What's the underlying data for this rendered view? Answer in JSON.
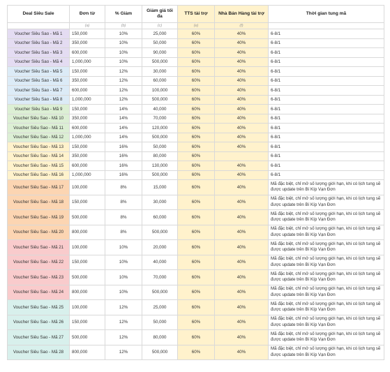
{
  "colors": {
    "lavender": "#e4dcf2",
    "light_blue": "#dcebf7",
    "light_green": "#dcefd4",
    "light_yellow": "#fff2cc",
    "orange": "#fcd5b2",
    "pink": "#f9cbcc",
    "mint": "#d8f0ec"
  },
  "headers": {
    "deal": "Deal Siêu Sale",
    "don_tu": "Đơn từ",
    "pct_giam": "% Giảm",
    "giam_toi_da": "Giảm giá tối đa",
    "tts": "TTS tài trợ",
    "nha_ban_hang": "Nhà Bán Hàng tài trợ",
    "thoi_gian": "Thời gian tung mã"
  },
  "subheaders": {
    "don_tu": "(a)",
    "pct_giam": "(b)",
    "giam_toi_da": "(c)",
    "tts": "(e)",
    "nha_ban_hang": "(f)"
  },
  "rows": [
    {
      "voucher": "Voucher Siêu Sao - Mã 1",
      "don_tu": "150,000",
      "pct": "10%",
      "max": "25,000",
      "tts": "60%",
      "nbh": "40%",
      "time": "6-8/1",
      "color": "#e4dcf2",
      "tall": false
    },
    {
      "voucher": "Voucher Siêu Sao - Mã 2",
      "don_tu": "350,000",
      "pct": "10%",
      "max": "50,000",
      "tts": "60%",
      "nbh": "40%",
      "time": "6-8/1",
      "color": "#e4dcf2",
      "tall": false
    },
    {
      "voucher": "Voucher Siêu Sao - Mã 3",
      "don_tu": "600,000",
      "pct": "10%",
      "max": "90,000",
      "tts": "60%",
      "nbh": "40%",
      "time": "6-8/1",
      "color": "#e4dcf2",
      "tall": false
    },
    {
      "voucher": "Voucher Siêu Sao - Mã 4",
      "don_tu": "1,000,000",
      "pct": "10%",
      "max": "500,000",
      "tts": "60%",
      "nbh": "40%",
      "time": "6-8/1",
      "color": "#e4dcf2",
      "tall": false
    },
    {
      "voucher": "Voucher Siêu Sao - Mã 5",
      "don_tu": "150,000",
      "pct": "12%",
      "max": "30,000",
      "tts": "60%",
      "nbh": "40%",
      "time": "6-8/1",
      "color": "#dcebf7",
      "tall": false
    },
    {
      "voucher": "Voucher Siêu Sao - Mã 6",
      "don_tu": "350,000",
      "pct": "12%",
      "max": "60,000",
      "tts": "60%",
      "nbh": "40%",
      "time": "6-8/1",
      "color": "#dcebf7",
      "tall": false
    },
    {
      "voucher": "Voucher Siêu Sao - Mã 7",
      "don_tu": "600,000",
      "pct": "12%",
      "max": "100,000",
      "tts": "60%",
      "nbh": "40%",
      "time": "6-8/1",
      "color": "#dcebf7",
      "tall": false
    },
    {
      "voucher": "Voucher Siêu Sao - Mã 8",
      "don_tu": "1,000,000",
      "pct": "12%",
      "max": "500,000",
      "tts": "60%",
      "nbh": "40%",
      "time": "6-8/1",
      "color": "#dcebf7",
      "tall": false
    },
    {
      "voucher": "Voucher Siêu Sao - Mã 9",
      "don_tu": "150,000",
      "pct": "14%",
      "max": "40,000",
      "tts": "60%",
      "nbh": "40%",
      "time": "6-8/1",
      "color": "#dcefd4",
      "tall": false
    },
    {
      "voucher": "Voucher Siêu Sao - Mã 10",
      "don_tu": "350,000",
      "pct": "14%",
      "max": "70,000",
      "tts": "60%",
      "nbh": "40%",
      "time": "6-8/1",
      "color": "#dcefd4",
      "tall": false
    },
    {
      "voucher": "Voucher Siêu Sao - Mã 11",
      "don_tu": "600,000",
      "pct": "14%",
      "max": "120,000",
      "tts": "60%",
      "nbh": "40%",
      "time": "6-8/1",
      "color": "#dcefd4",
      "tall": false
    },
    {
      "voucher": "Voucher Siêu Sao - Mã 12",
      "don_tu": "1,000,000",
      "pct": "14%",
      "max": "500,000",
      "tts": "60%",
      "nbh": "40%",
      "time": "6-8/1",
      "color": "#dcefd4",
      "tall": false
    },
    {
      "voucher": "Voucher Siêu Sao - Mã 13",
      "don_tu": "150,000",
      "pct": "16%",
      "max": "50,000",
      "tts": "60%",
      "nbh": "40%",
      "time": "6-8/1",
      "color": "#fff2cc",
      "tall": false
    },
    {
      "voucher": "Voucher Siêu Sao - Mã 14",
      "don_tu": "350,000",
      "pct": "16%",
      "max": "80,000",
      "tts": "60%",
      "nbh": "",
      "time": "6-8/1",
      "color": "#fff2cc",
      "tall": false
    },
    {
      "voucher": "Voucher Siêu Sao - Mã 15",
      "don_tu": "600,000",
      "pct": "16%",
      "max": "130,000",
      "tts": "60%",
      "nbh": "40%",
      "time": "6-8/1",
      "color": "#fff2cc",
      "tall": false
    },
    {
      "voucher": "Voucher Siêu Sao - Mã 16",
      "don_tu": "1,000,000",
      "pct": "16%",
      "max": "500,000",
      "tts": "60%",
      "nbh": "40%",
      "time": "6-8/1",
      "color": "#fff2cc",
      "tall": false
    },
    {
      "voucher": "Voucher Siêu Sao - Mã 17",
      "don_tu": "100,000",
      "pct": "8%",
      "max": "15,000",
      "tts": "60%",
      "nbh": "40%",
      "time": "Mã đặc biệt, chỉ mở số lượng giới hạn, khi có lịch tung sẽ được update trên Bí Kíp Vạn Đơn",
      "color": "#fcd5b2",
      "tall": true
    },
    {
      "voucher": "Voucher Siêu Sao - Mã 18",
      "don_tu": "150,000",
      "pct": "8%",
      "max": "30,000",
      "tts": "60%",
      "nbh": "40%",
      "time": "Mã đặc biệt, chỉ mở số lượng giới hạn, khi có lịch tung sẽ được update trên Bí Kíp Vạn Đơn",
      "color": "#fcd5b2",
      "tall": true
    },
    {
      "voucher": "Voucher Siêu Sao - Mã 19",
      "don_tu": "500,000",
      "pct": "8%",
      "max": "60,000",
      "tts": "60%",
      "nbh": "40%",
      "time": "Mã đặc biệt, chỉ mở số lượng giới hạn, khi có lịch tung sẽ được update trên Bí Kíp Vạn Đơn",
      "color": "#fcd5b2",
      "tall": true
    },
    {
      "voucher": "Voucher Siêu Sao - Mã 20",
      "don_tu": "800,000",
      "pct": "8%",
      "max": "500,000",
      "tts": "60%",
      "nbh": "40%",
      "time": "Mã đặc biệt, chỉ mở số lượng giới hạn, khi có lịch tung sẽ được update trên Bí Kíp Vạn Đơn",
      "color": "#fcd5b2",
      "tall": true
    },
    {
      "voucher": "Voucher Siêu Sao - Mã 21",
      "don_tu": "100,000",
      "pct": "10%",
      "max": "20,000",
      "tts": "60%",
      "nbh": "40%",
      "time": "Mã đặc biệt, chỉ mở số lượng giới hạn, khi có lịch tung sẽ được update trên Bí Kíp Vạn Đơn",
      "color": "#f9cbcc",
      "tall": true
    },
    {
      "voucher": "Voucher Siêu Sao - Mã 22",
      "don_tu": "150,000",
      "pct": "10%",
      "max": "40,000",
      "tts": "60%",
      "nbh": "40%",
      "time": "Mã đặc biệt, chỉ mở số lượng giới hạn, khi có lịch tung sẽ được update trên Bí Kíp Vạn Đơn",
      "color": "#f9cbcc",
      "tall": true
    },
    {
      "voucher": "Voucher Siêu Sao - Mã 23",
      "don_tu": "500,000",
      "pct": "10%",
      "max": "70,000",
      "tts": "60%",
      "nbh": "40%",
      "time": "Mã đặc biệt, chỉ mở số lượng giới hạn, khi có lịch tung sẽ được update trên Bí Kíp Vạn Đơn",
      "color": "#f9cbcc",
      "tall": true
    },
    {
      "voucher": "Voucher Siêu Sao - Mã 24",
      "don_tu": "800,000",
      "pct": "10%",
      "max": "500,000",
      "tts": "60%",
      "nbh": "40%",
      "time": "Mã đặc biệt, chỉ mở số lượng giới hạn, khi có lịch tung sẽ được update trên Bí Kíp Vạn Đơn",
      "color": "#f9cbcc",
      "tall": true
    },
    {
      "voucher": "Voucher Siêu Sao - Mã 25",
      "don_tu": "100,000",
      "pct": "12%",
      "max": "25,000",
      "tts": "60%",
      "nbh": "40%",
      "time": "Mã đặc biệt, chỉ mở số lượng giới hạn, khi có lịch tung sẽ được update trên Bí Kíp Vạn Đơn",
      "color": "#d8f0ec",
      "tall": true
    },
    {
      "voucher": "Voucher Siêu Sao - Mã 26",
      "don_tu": "150,000",
      "pct": "12%",
      "max": "50,000",
      "tts": "60%",
      "nbh": "40%",
      "time": "Mã đặc biệt, chỉ mở số lượng giới hạn, khi có lịch tung sẽ được update trên Bí Kíp Vạn Đơn",
      "color": "#d8f0ec",
      "tall": true
    },
    {
      "voucher": "Voucher Siêu Sao - Mã 27",
      "don_tu": "500,000",
      "pct": "12%",
      "max": "80,000",
      "tts": "60%",
      "nbh": "40%",
      "time": "Mã đặc biệt, chỉ mở số lượng giới hạn, khi có lịch tung sẽ được update trên Bí Kíp Vạn Đơn",
      "color": "#d8f0ec",
      "tall": true
    },
    {
      "voucher": "Voucher Siêu Sao - Mã 28",
      "don_tu": "800,000",
      "pct": "12%",
      "max": "500,000",
      "tts": "60%",
      "nbh": "40%",
      "time": "Mã đặc biệt, chỉ mở số lượng giới hạn, khi có lịch tung sẽ được update trên Bí Kíp Vạn Đơn",
      "color": "#d8f0ec",
      "tall": true
    }
  ]
}
